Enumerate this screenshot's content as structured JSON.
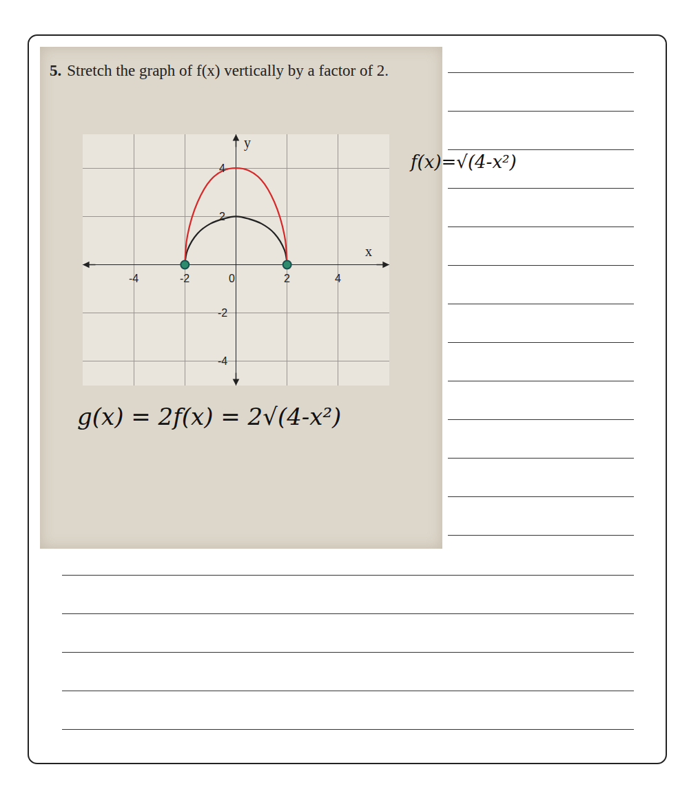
{
  "chart_data": {
    "type": "line",
    "number": "5.",
    "title": "Stretch the graph of f(x) vertically by a factor of 2.",
    "x_label": "x",
    "y_label": "y",
    "annotations": [
      "f(x)=√(4-x²)",
      "g(x) = 2f(x) = 2√(4-x²)"
    ],
    "xlim": [
      -6,
      6
    ],
    "ylim": [
      -5,
      5.4
    ],
    "xticks": [
      -4,
      -2,
      0,
      2,
      4
    ],
    "yticks": [
      -4,
      -2,
      2,
      4
    ],
    "grid": true,
    "series": [
      {
        "color": "#222222",
        "line_style": "solid",
        "marker": "none",
        "x": [
          -2,
          -1.9,
          -1.5,
          -1,
          -0.5,
          0,
          0.5,
          1,
          1.5,
          1.9,
          2
        ],
        "values": [
          0,
          0.6,
          1.3,
          1.7,
          1.9,
          2,
          1.9,
          1.7,
          1.3,
          0.6,
          0
        ]
      },
      {
        "color": "#d42a2a",
        "line_style": "solid",
        "marker": "none",
        "x": [
          -2,
          -1.9,
          -1.5,
          -1,
          -0.5,
          0,
          0.5,
          1,
          1.5,
          1.9,
          2
        ],
        "values": [
          0,
          1.2,
          2.6,
          3.5,
          3.9,
          4,
          3.9,
          3.5,
          2.6,
          1.2,
          0
        ]
      },
      {
        "type": "scatter",
        "color": "#2e8b6e",
        "marker": "circle",
        "x": [
          -2,
          2
        ],
        "values": [
          0,
          0
        ]
      }
    ]
  }
}
